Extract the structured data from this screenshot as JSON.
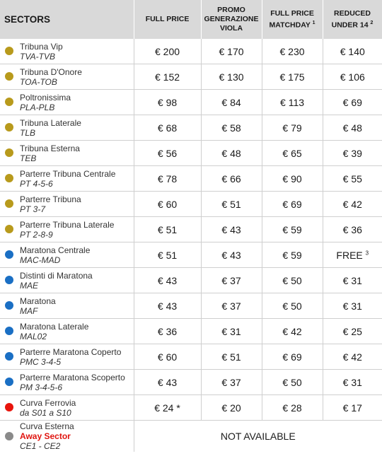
{
  "header": {
    "sectors": "SECTORS",
    "full_price": "FULL PRICE",
    "promo": [
      "PROMO",
      "GENERAZIONE",
      "VIOLA"
    ],
    "matchday": [
      "FULL PRICE",
      "MATCHDAY"
    ],
    "matchday_note": "1",
    "reduced": [
      "REDUCED",
      "UNDER 14"
    ],
    "reduced_note": "2"
  },
  "colors": {
    "gold": "#b89a1c",
    "blue": "#1a6fc4",
    "red": "#e8140c",
    "grey": "#8a8a8a"
  },
  "rows": [
    {
      "color": "gold",
      "name": "Tribuna Vip",
      "code": "TVA-TVB",
      "full": "€ 200",
      "promo": "€ 170",
      "matchday": "€ 230",
      "reduced": "€ 140"
    },
    {
      "color": "gold",
      "name": "Tribuna D'Onore",
      "code": "TOA-TOB",
      "full": "€ 152",
      "promo": "€ 130",
      "matchday": "€ 175",
      "reduced": "€ 106"
    },
    {
      "color": "gold",
      "name": "Poltronissima",
      "code": "PLA-PLB",
      "full": "€ 98",
      "promo": "€ 84",
      "matchday": "€ 113",
      "reduced": "€ 69"
    },
    {
      "color": "gold",
      "name": "Tribuna Laterale",
      "code": "TLB",
      "full": "€ 68",
      "promo": "€ 58",
      "matchday": "€ 79",
      "reduced": "€ 48"
    },
    {
      "color": "gold",
      "name": "Tribuna Esterna",
      "code": "TEB",
      "full": "€ 56",
      "promo": "€ 48",
      "matchday": "€ 65",
      "reduced": "€ 39"
    },
    {
      "color": "gold",
      "name": "Parterre Tribuna Centrale",
      "code": "PT 4-5-6",
      "full": "€ 78",
      "promo": "€ 66",
      "matchday": "€ 90",
      "reduced": "€ 55"
    },
    {
      "color": "gold",
      "name": "Parterre Tribuna",
      "code": "PT 3-7",
      "full": "€ 60",
      "promo": "€ 51",
      "matchday": "€ 69",
      "reduced": "€ 42"
    },
    {
      "color": "gold",
      "name": "Parterre Tribuna Laterale",
      "code": "PT 2-8-9",
      "full": "€ 51",
      "promo": "€ 43",
      "matchday": "€ 59",
      "reduced": "€ 36"
    },
    {
      "color": "blue",
      "name": "Maratona Centrale",
      "code": "MAC-MAD",
      "full": "€ 51",
      "promo": "€ 43",
      "matchday": "€ 59",
      "reduced": "FREE",
      "reduced_note": "3"
    },
    {
      "color": "blue",
      "name": "Distinti di Maratona",
      "code": "MAE",
      "full": "€ 43",
      "promo": "€ 37",
      "matchday": "€ 50",
      "reduced": "€ 31"
    },
    {
      "color": "blue",
      "name": "Maratona",
      "code": "MAF",
      "full": "€ 43",
      "promo": "€ 37",
      "matchday": "€ 50",
      "reduced": "€ 31"
    },
    {
      "color": "blue",
      "name": "Maratona Laterale",
      "code": "MAL02",
      "full": "€ 36",
      "promo": "€ 31",
      "matchday": "€ 42",
      "reduced": "€ 25"
    },
    {
      "color": "blue",
      "name": "Parterre Maratona Coperto",
      "code": "PMC 3-4-5",
      "full": "€ 60",
      "promo": "€ 51",
      "matchday": "€ 69",
      "reduced": "€ 42"
    },
    {
      "color": "blue",
      "name": "Parterre Maratona Scoperto",
      "code": "PM 3-4-5-6",
      "full": "€ 43",
      "promo": "€ 37",
      "matchday": "€ 50",
      "reduced": "€ 31"
    },
    {
      "color": "red",
      "name": "Curva Ferrovia",
      "code": "da S01 a S10",
      "full": "€ 24 *",
      "promo": "€ 20",
      "matchday": "€ 28",
      "reduced": "€ 17"
    }
  ],
  "last_row": {
    "color": "grey",
    "name": "Curva Esterna",
    "away": "Away Sector",
    "code": "CE1 - CE2",
    "status": "NOT AVAILABLE"
  }
}
